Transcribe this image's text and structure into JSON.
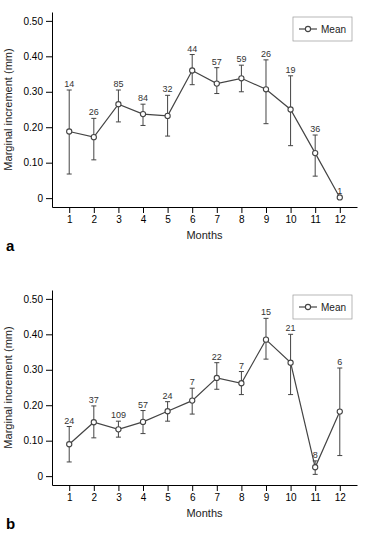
{
  "chart_data": [
    {
      "type": "line",
      "title": "a",
      "x_label": "Months",
      "y_label": "Marginal increment (mm)",
      "x": [
        1,
        2,
        3,
        4,
        5,
        6,
        7,
        8,
        9,
        10,
        11,
        12
      ],
      "xlim": [
        0.3,
        12.7
      ],
      "xticks": [
        1,
        2,
        3,
        4,
        5,
        6,
        7,
        8,
        9,
        10,
        11,
        12
      ],
      "ylim": [
        -0.025,
        0.525
      ],
      "yticks": [
        0,
        {
          "value": 0.1,
          "label": "0.10"
        },
        {
          "value": 0.2,
          "label": "0.20"
        },
        {
          "value": 0.3,
          "label": "0.30"
        },
        {
          "value": 0.4,
          "label": "0.40"
        },
        {
          "value": 0.5,
          "label": "0.50"
        }
      ],
      "legend": "upper right",
      "grid": false,
      "series": [
        {
          "name": "Mean",
          "color": "#444444",
          "marker": "o",
          "line_style": "solid",
          "values": [
            0.188,
            0.172,
            0.265,
            0.237,
            0.232,
            0.36,
            0.323,
            0.338,
            0.307,
            0.25,
            0.127,
            0.002
          ],
          "ci_lo": [
            0.068,
            0.108,
            0.215,
            0.205,
            0.175,
            0.32,
            0.295,
            0.3,
            0.21,
            0.148,
            0.062,
            0.002
          ],
          "ci_hi": [
            0.305,
            0.225,
            0.305,
            0.265,
            0.29,
            0.405,
            0.368,
            0.375,
            0.39,
            0.345,
            0.178,
            0.002
          ],
          "n": [
            14,
            26,
            85,
            84,
            32,
            44,
            57,
            59,
            26,
            19,
            36,
            1
          ]
        }
      ]
    },
    {
      "type": "line",
      "title": "b",
      "x_label": "Months",
      "y_label": "Marginal increment (mm)",
      "x": [
        1,
        2,
        3,
        4,
        5,
        6,
        7,
        8,
        9,
        10,
        11,
        12
      ],
      "xlim": [
        0.3,
        12.7
      ],
      "xticks": [
        1,
        2,
        3,
        4,
        5,
        6,
        7,
        8,
        9,
        10,
        11,
        12
      ],
      "ylim": [
        -0.025,
        0.525
      ],
      "yticks": [
        0,
        {
          "value": 0.1,
          "label": "0.10"
        },
        {
          "value": 0.2,
          "label": "0.20"
        },
        {
          "value": 0.3,
          "label": "0.30"
        },
        {
          "value": 0.4,
          "label": "0.40"
        },
        {
          "value": 0.5,
          "label": "0.50"
        }
      ],
      "legend": "upper right",
      "grid": false,
      "series": [
        {
          "name": "Mean",
          "color": "#444444",
          "marker": "o",
          "line_style": "solid",
          "values": [
            0.09,
            0.152,
            0.132,
            0.153,
            0.183,
            0.213,
            0.277,
            0.262,
            0.385,
            0.32,
            0.025,
            0.182
          ],
          "ci_lo": [
            0.04,
            0.108,
            0.11,
            0.12,
            0.155,
            0.175,
            0.245,
            0.23,
            0.33,
            0.23,
            0.005,
            0.058
          ],
          "ci_hi": [
            0.14,
            0.198,
            0.155,
            0.185,
            0.21,
            0.248,
            0.32,
            0.295,
            0.445,
            0.4,
            0.043,
            0.305
          ],
          "n": [
            24,
            37,
            109,
            57,
            24,
            7,
            22,
            7,
            15,
            21,
            8,
            6
          ]
        }
      ]
    }
  ]
}
